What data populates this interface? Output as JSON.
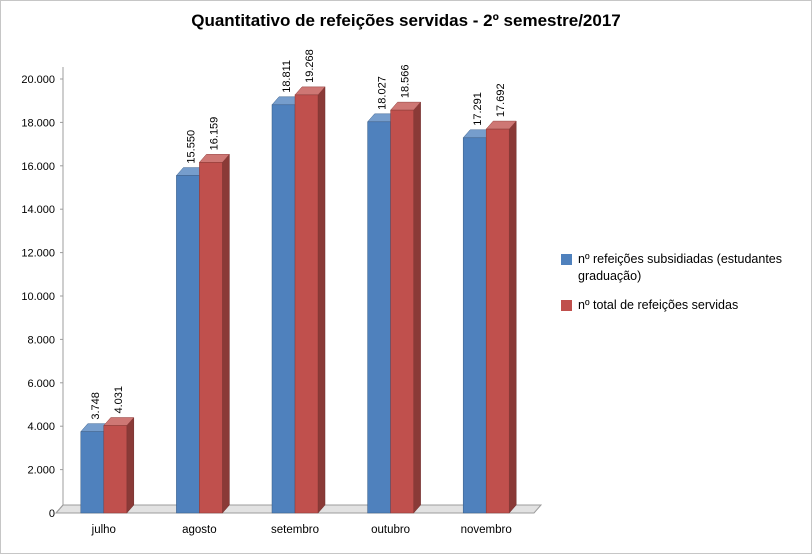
{
  "chart_data": {
    "type": "bar",
    "effect": "3d-clustered-column",
    "title": "Quantitativo de refeições servidas - 2º semestre/2017",
    "categories": [
      "julho",
      "agosto",
      "setembro",
      "outubro",
      "novembro"
    ],
    "series": [
      {
        "name": "nº refeições subsidiadas (estudantes graduação)",
        "color": "#4F81BD",
        "values": [
          3748,
          15550,
          18811,
          18027,
          17291
        ],
        "value_labels": [
          "3.748",
          "15.550",
          "18.811",
          "18.027",
          "17.291"
        ]
      },
      {
        "name": "nº total de refeições servidas",
        "color": "#C0504D",
        "values": [
          4031,
          16159,
          19268,
          18566,
          17692
        ],
        "value_labels": [
          "4.031",
          "16.159",
          "19.268",
          "18.566",
          "17.692"
        ]
      }
    ],
    "xlabel": "",
    "ylabel": "",
    "ylim": [
      0,
      20000
    ],
    "ytick_step": 2000,
    "yticks": [
      "0",
      "2.000",
      "4.000",
      "6.000",
      "8.000",
      "10.000",
      "12.000",
      "14.000",
      "16.000",
      "18.000",
      "20.000"
    ],
    "legend_position": "right",
    "grid": false,
    "value_label_rotation": -90
  }
}
